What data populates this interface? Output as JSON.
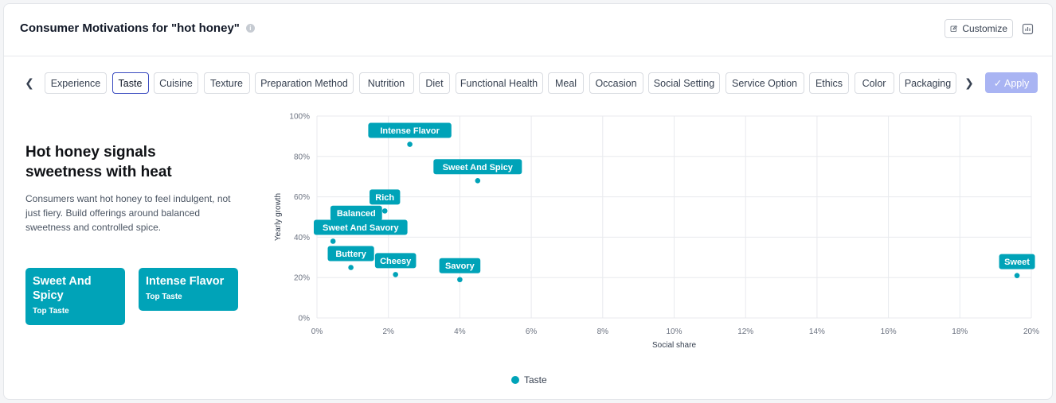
{
  "header": {
    "title": "Consumer Motivations for \"hot honey\"",
    "customize_label": "Customize"
  },
  "tabs": {
    "items": [
      "Experience",
      "Taste",
      "Cuisine",
      "Texture",
      "Preparation Method",
      "Nutrition",
      "Diet",
      "Functional Health",
      "Meal",
      "Occasion",
      "Social Setting",
      "Service Option",
      "Ethics",
      "Color",
      "Packaging"
    ],
    "active": "Taste",
    "apply_label": "✓ Apply"
  },
  "insight": {
    "headline": "Hot honey signals sweetness with heat",
    "description": "Consumers want hot honey to feel indulgent, not just fiery. Build offerings around balanced sweetness and controlled spice.",
    "cards": [
      {
        "value": "Sweet And Spicy",
        "label": "Top Taste"
      },
      {
        "value": "Intense Flavor",
        "label": "Top Taste"
      }
    ]
  },
  "colors": {
    "accent": "#00a3b8",
    "apply": "#a9b4f3",
    "active_tab_border": "#3b4cc0"
  },
  "chart_data": {
    "type": "scatter",
    "xlabel": "Social share",
    "ylabel": "Yearly growth",
    "xlim": [
      0,
      20
    ],
    "ylim": [
      0,
      100
    ],
    "x_ticks": [
      "0%",
      "2%",
      "4%",
      "6%",
      "8%",
      "10%",
      "12%",
      "14%",
      "16%",
      "18%",
      "20%"
    ],
    "y_ticks": [
      "0%",
      "20%",
      "40%",
      "60%",
      "80%",
      "100%"
    ],
    "grid": true,
    "legend": "bottom",
    "series": [
      {
        "name": "Taste",
        "points": [
          {
            "label": "Intense Flavor",
            "x": 2.6,
            "y": 86
          },
          {
            "label": "Sweet And Spicy",
            "x": 4.5,
            "y": 68
          },
          {
            "label": "Rich",
            "x": 1.9,
            "y": 53
          },
          {
            "label": "Balanced",
            "x": 1.1,
            "y": 45
          },
          {
            "label": "Sweet And Savory",
            "x": 0.45,
            "y": 38
          },
          {
            "label": "Buttery",
            "x": 0.95,
            "y": 25
          },
          {
            "label": "Cheesy",
            "x": 2.2,
            "y": 21.5
          },
          {
            "label": "Savory",
            "x": 4.0,
            "y": 19
          },
          {
            "label": "Sweet",
            "x": 19.6,
            "y": 21
          }
        ]
      }
    ]
  }
}
